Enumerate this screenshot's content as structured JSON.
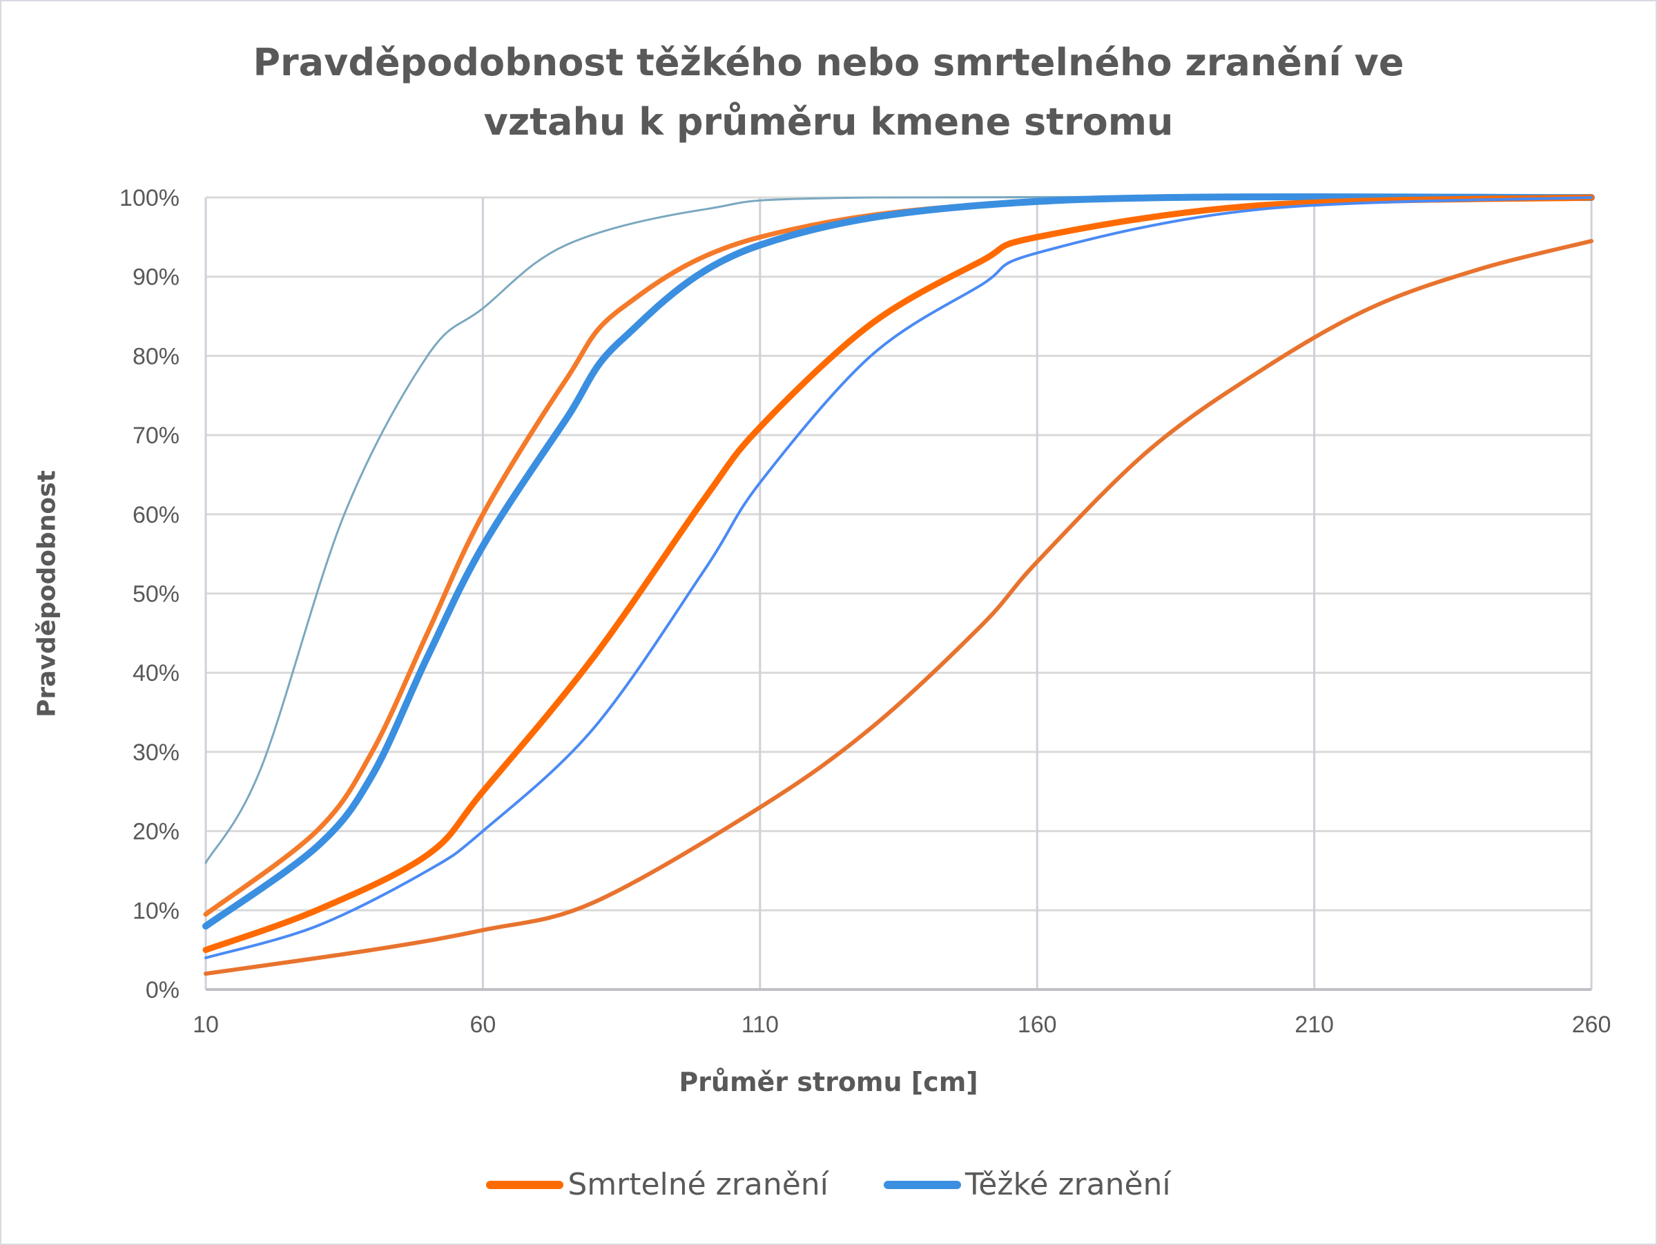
{
  "chart_data": {
    "type": "line",
    "title": "Pravděpodobnost těžkého nebo smrtelného zranění ve vztahu k průměru kmene stromu",
    "title_lines": [
      "Pravděpodobnost těžkého nebo smrtelného zranění ve",
      "vztahu k průměru kmene stromu"
    ],
    "xlabel": "Průměr stromu [cm]",
    "ylabel": "Pravděpodobnost",
    "xlim": [
      10,
      260
    ],
    "ylim": [
      0,
      1
    ],
    "x_ticks": [
      "10",
      "60",
      "110",
      "160",
      "210",
      "260"
    ],
    "y_ticks": [
      "0%",
      "10%",
      "20%",
      "30%",
      "40%",
      "50%",
      "60%",
      "70%",
      "80%",
      "90%",
      "100%"
    ],
    "grid": true,
    "legend_position": "bottom",
    "legend": [
      {
        "label": "Smrtelné zranění",
        "color": "#ff6a00"
      },
      {
        "label": "Těžké zranění",
        "color": "#3b8fe0"
      }
    ],
    "series": [
      {
        "name": "Těžké zranění (křivka A)",
        "group": "Těžké zranění",
        "color": "#7aa8bf",
        "width": 3,
        "dash": "",
        "x": [
          10,
          20,
          35,
          50,
          60,
          75,
          100,
          130,
          260
        ],
        "y": [
          0.16,
          0.28,
          0.6,
          0.8,
          0.86,
          0.94,
          0.985,
          1.0,
          1.0
        ]
      },
      {
        "name": "Smrtelné zranění (křivka A)",
        "group": "Smrtelné zranění",
        "color": "#f47a2a",
        "width": 7,
        "dash": "",
        "x": [
          10,
          30,
          40,
          50,
          60,
          75,
          85,
          110,
          160,
          260
        ],
        "y": [
          0.095,
          0.2,
          0.3,
          0.45,
          0.6,
          0.77,
          0.86,
          0.95,
          0.995,
          1.0
        ]
      },
      {
        "name": "Těžké zranění (křivka B)",
        "group": "Těžké zranění",
        "color": "#3b8fe0",
        "width": 10,
        "dash": "",
        "x": [
          10,
          30,
          40,
          50,
          60,
          75,
          85,
          110,
          160,
          260
        ],
        "y": [
          0.08,
          0.18,
          0.27,
          0.42,
          0.56,
          0.72,
          0.82,
          0.94,
          0.995,
          1.0
        ]
      },
      {
        "name": "Smrtelné zranění (křivka B)",
        "group": "Smrtelné zranění",
        "color": "#ff6a00",
        "width": 9,
        "dash": "",
        "x": [
          10,
          30,
          50,
          60,
          80,
          100,
          110,
          130,
          150,
          160,
          200,
          260
        ],
        "y": [
          0.05,
          0.1,
          0.17,
          0.25,
          0.42,
          0.62,
          0.71,
          0.84,
          0.92,
          0.95,
          0.99,
          1.0
        ]
      },
      {
        "name": "Těžké zranění (křivka C)",
        "group": "Těžké zranění",
        "color": "#4a8af4",
        "width": 4,
        "dash": "",
        "x": [
          10,
          30,
          50,
          60,
          80,
          100,
          110,
          130,
          150,
          160,
          200,
          260
        ],
        "y": [
          0.04,
          0.08,
          0.15,
          0.2,
          0.33,
          0.53,
          0.64,
          0.8,
          0.89,
          0.93,
          0.985,
          1.0
        ]
      },
      {
        "name": "Smrtelné zranění (křivka C)",
        "group": "Smrtelné zranění",
        "color": "#e8732e",
        "width": 6,
        "dash": "",
        "x": [
          10,
          40,
          60,
          80,
          110,
          130,
          150,
          160,
          180,
          200,
          220,
          240,
          260
        ],
        "y": [
          0.02,
          0.05,
          0.075,
          0.11,
          0.23,
          0.33,
          0.46,
          0.54,
          0.68,
          0.78,
          0.86,
          0.91,
          0.945
        ]
      }
    ]
  }
}
